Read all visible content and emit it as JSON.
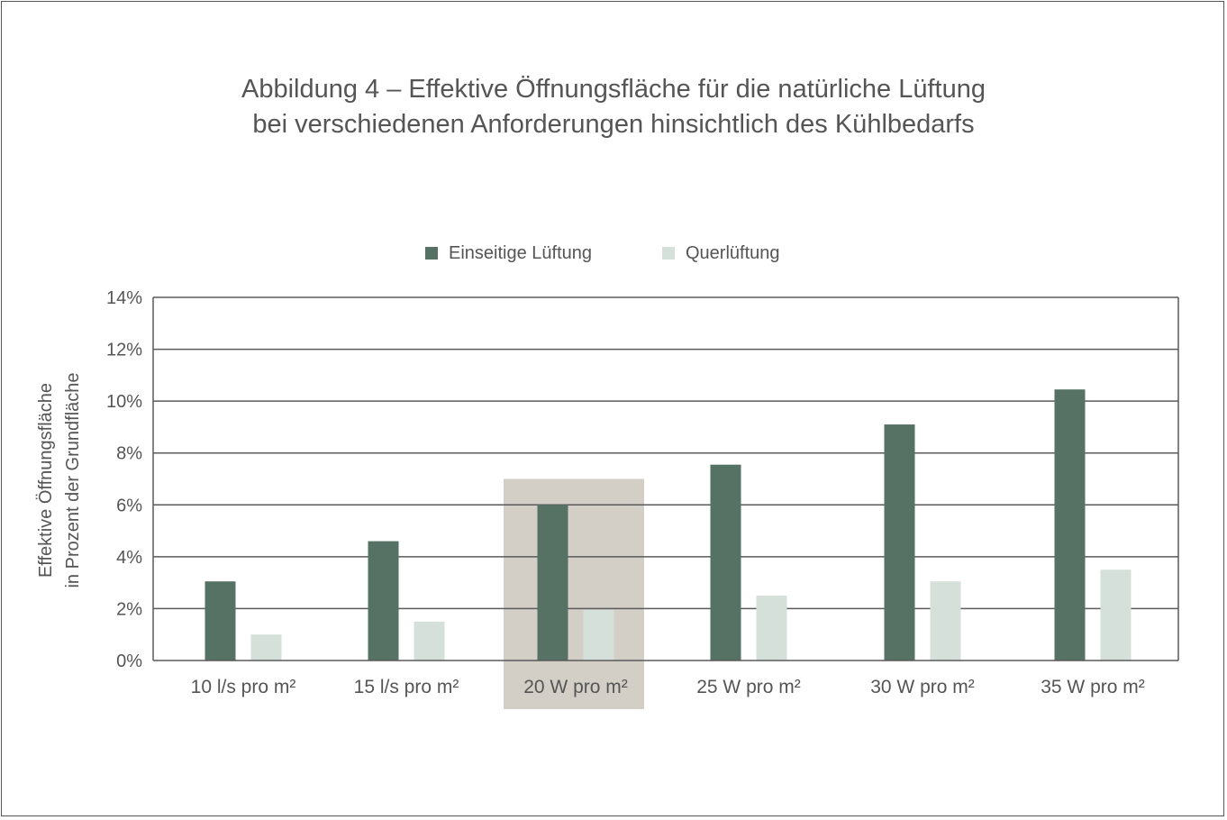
{
  "chart_data": {
    "type": "bar",
    "title_lines": [
      "Abbildung 4 – Effektive Öffnungsfläche für die natürliche Lüftung",
      "bei verschiedenen Anforderungen hinsichtlich des Kühlbedarfs"
    ],
    "ylabel_lines": [
      "Effektive Öffnungsfläche",
      "in Prozent der Grundfläche"
    ],
    "xlabel": "",
    "categories": [
      "10 l/s pro m²",
      "15 l/s pro m²",
      "20 W pro m²",
      "25 W pro m²",
      "30 W pro m²",
      "35 W pro m²"
    ],
    "highlighted_category": "20 W pro m²",
    "series": [
      {
        "name": "Einseitige Lüftung",
        "color": "#557265",
        "values": [
          3.05,
          4.6,
          6.0,
          7.55,
          9.1,
          10.45
        ]
      },
      {
        "name": "Querlüftung",
        "color": "#d6e0da",
        "values": [
          1.0,
          1.5,
          1.95,
          2.5,
          3.05,
          3.5
        ]
      }
    ],
    "ylim": [
      0,
      14
    ],
    "yticks": [
      0,
      2,
      4,
      6,
      8,
      10,
      12,
      14
    ],
    "ytick_labels": [
      "0%",
      "2%",
      "4%",
      "6%",
      "8%",
      "10%",
      "12%",
      "14%"
    ],
    "highlight_ylim_top": 7.0,
    "grid": true,
    "legend_position": "top-center",
    "colors": {
      "highlight": "#d3cec6",
      "grid": "#5a5a5a",
      "text": "#555555"
    }
  }
}
